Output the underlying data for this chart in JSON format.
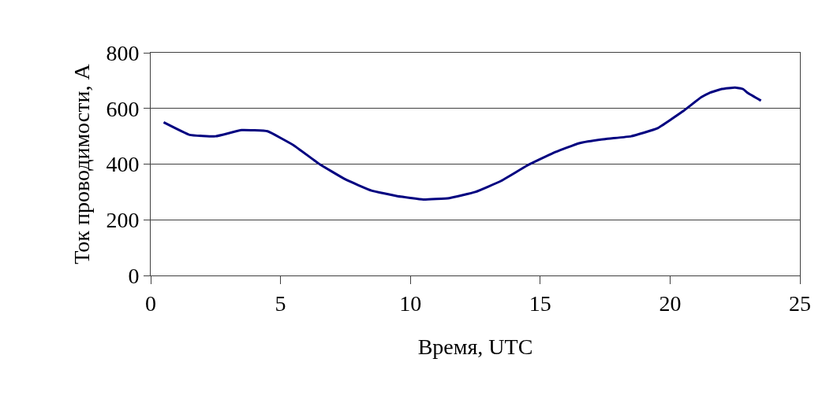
{
  "chart_data": {
    "type": "line",
    "xlabel": "Время, UTC",
    "ylabel": "Ток проводимости, А",
    "x": [
      0.5,
      1.5,
      2.5,
      3.5,
      4.5,
      5.5,
      6.5,
      7.5,
      8.5,
      9.5,
      10.5,
      11.5,
      12.5,
      13.5,
      14.5,
      15.5,
      16.5,
      17.5,
      18.5,
      19.5,
      20.5,
      21.2,
      21.5,
      22.0,
      22.5,
      22.8,
      23.0,
      23.5
    ],
    "series": [
      {
        "color": "#000080",
        "values": [
          550,
          505,
          500,
          522,
          518,
          468,
          400,
          345,
          305,
          285,
          273,
          278,
          300,
          340,
          395,
          440,
          475,
          490,
          500,
          528,
          590,
          640,
          655,
          670,
          675,
          670,
          655,
          628
        ]
      }
    ],
    "xlim": [
      0,
      25
    ],
    "xticks": [
      0,
      5,
      10,
      15,
      20,
      25
    ],
    "ylim": [
      0,
      800
    ],
    "yticks": [
      0,
      200,
      400,
      600,
      800
    ],
    "grid": "y",
    "marker": "none",
    "line_style": "solid"
  }
}
